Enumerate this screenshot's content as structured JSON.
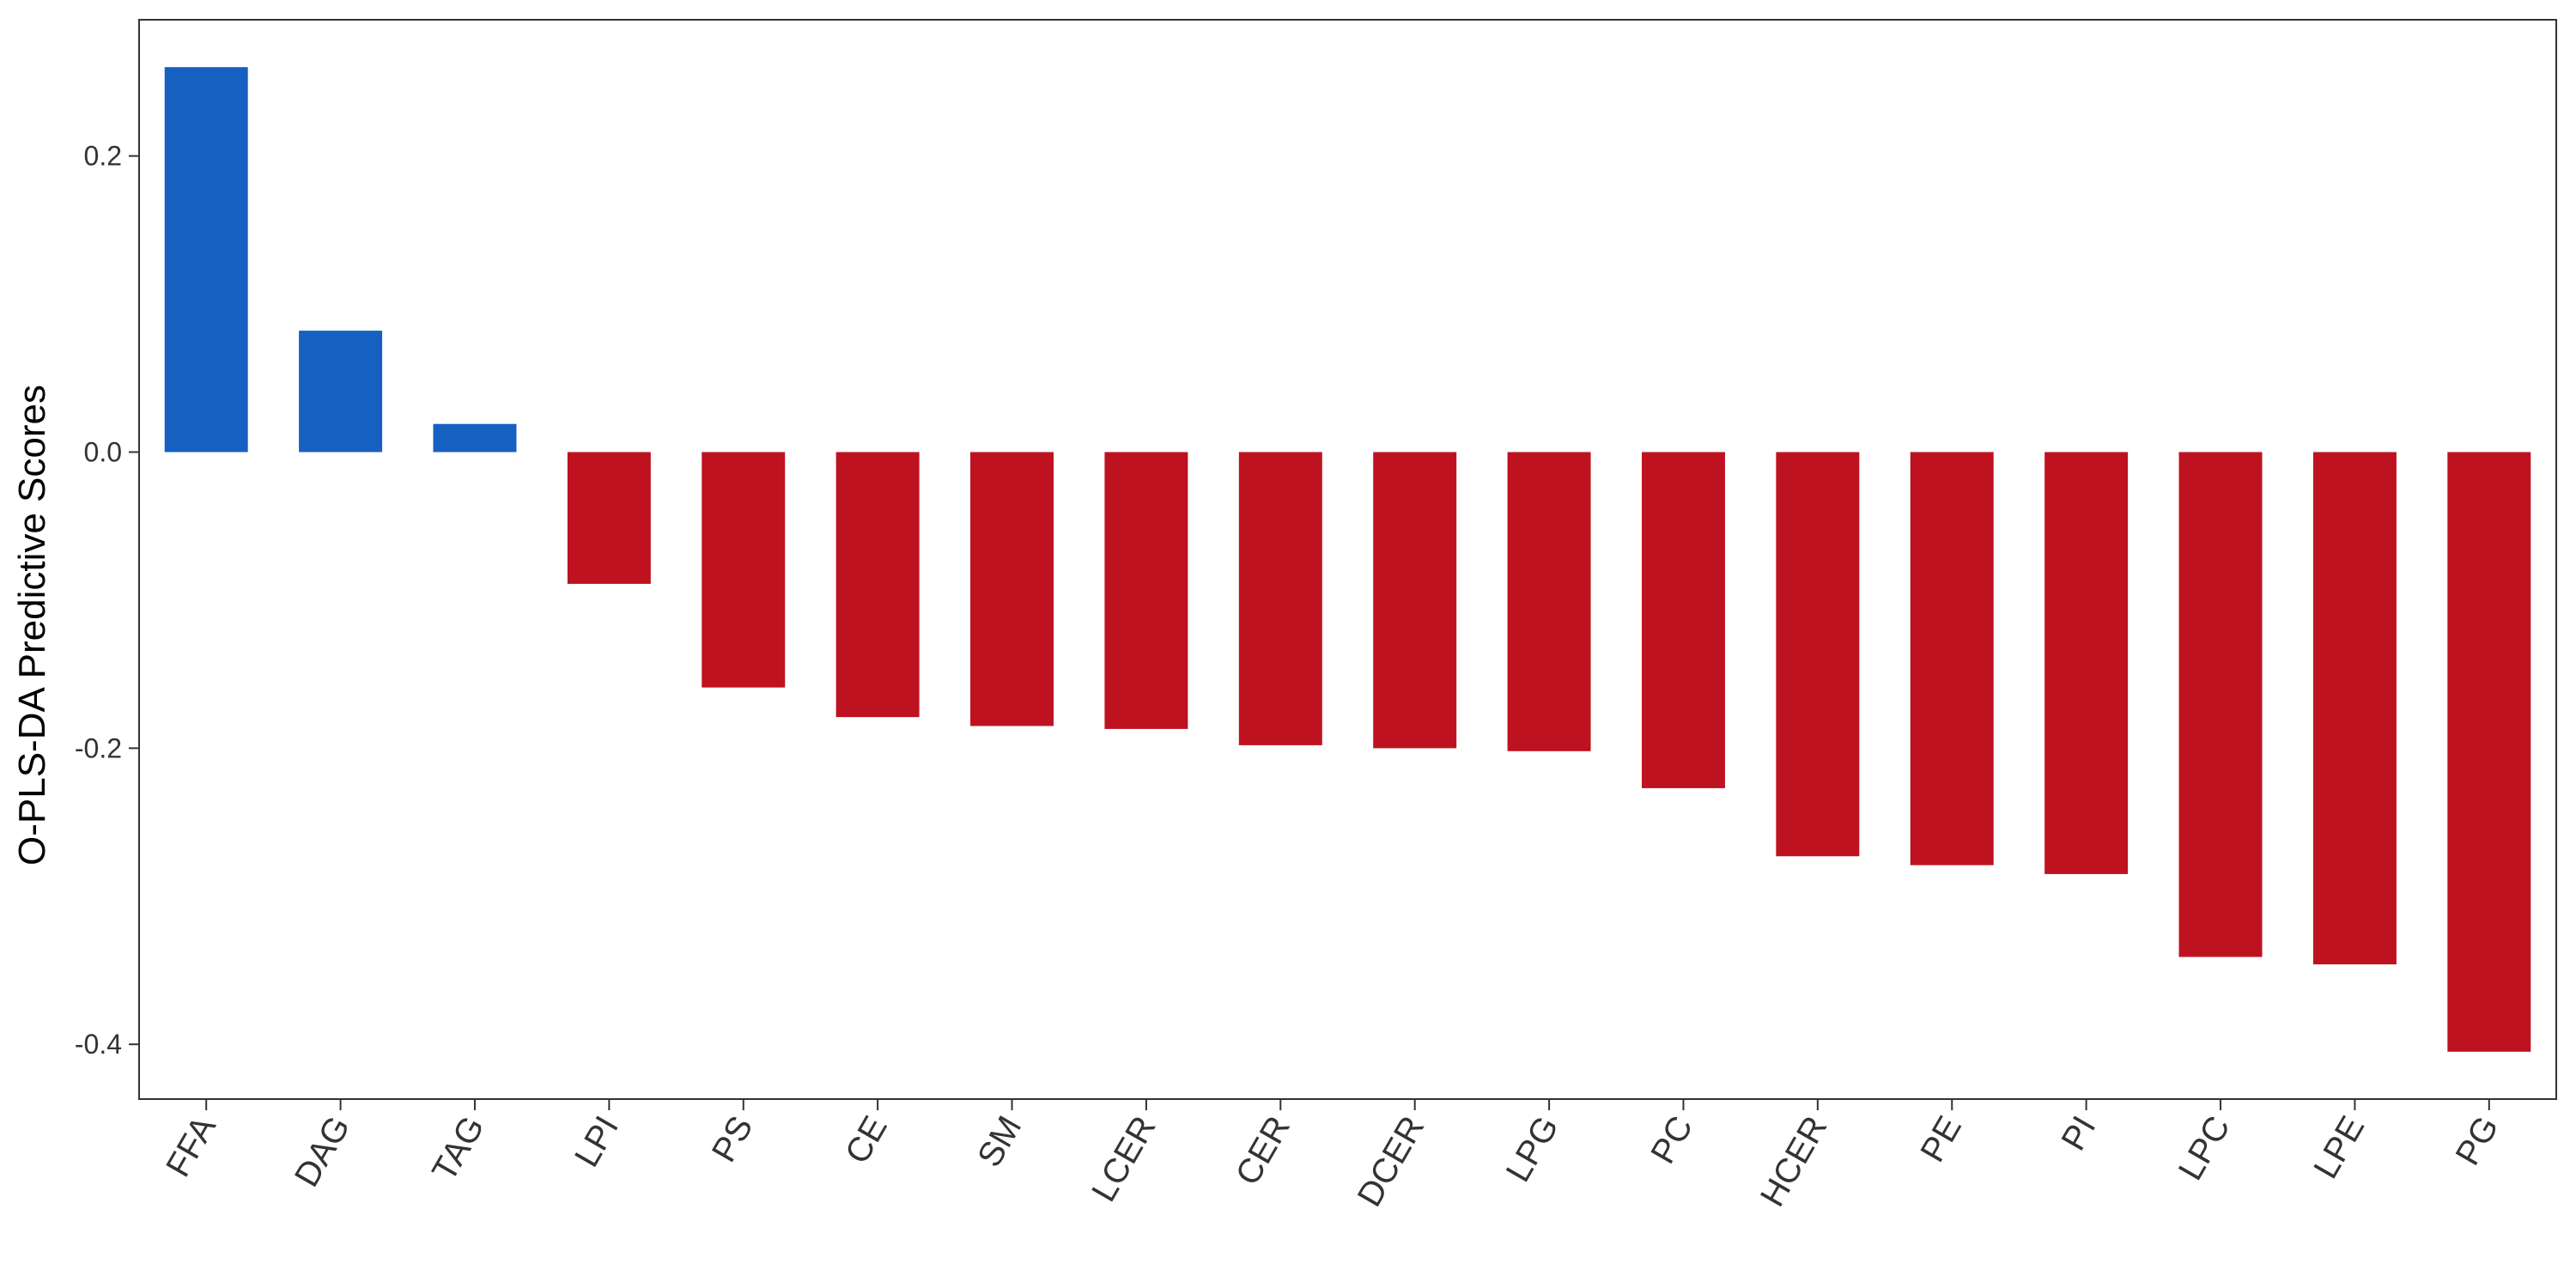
{
  "chart_data": {
    "type": "bar",
    "title": "",
    "xlabel": "",
    "ylabel": "O-PLS-DA Predictive Scores",
    "categories": [
      "FFA",
      "DAG",
      "TAG",
      "LPI",
      "PS",
      "CE",
      "SM",
      "LCER",
      "CER",
      "DCER",
      "LPG",
      "PC",
      "HCER",
      "PE",
      "PI",
      "LPC",
      "LPE",
      "PG"
    ],
    "values": [
      0.26,
      0.082,
      0.019,
      -0.089,
      -0.159,
      -0.179,
      -0.185,
      -0.187,
      -0.198,
      -0.2,
      -0.202,
      -0.227,
      -0.273,
      -0.279,
      -0.285,
      -0.341,
      -0.346,
      -0.405
    ],
    "ylim": [
      -0.437,
      0.292
    ],
    "yticks": [
      0.2,
      0.0,
      -0.2,
      -0.4
    ],
    "ytick_labels": [
      "0.2",
      "0.0",
      "-0.2",
      "-0.4"
    ],
    "grid": false,
    "legend": "none",
    "colors": {
      "positive": "#1660C2",
      "negative": "#BE1220",
      "axis": "#333333"
    }
  }
}
